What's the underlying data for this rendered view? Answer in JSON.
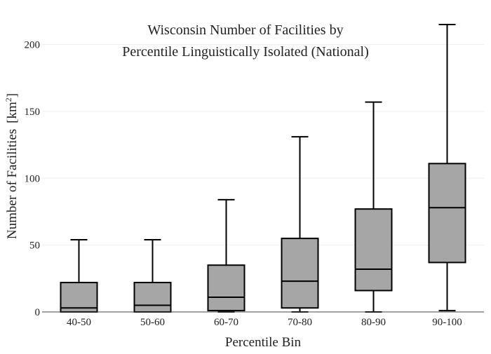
{
  "chart_data": {
    "type": "box",
    "title_lines": [
      "Wisconsin Number of Facilities by",
      "Percentile Linguistically Isolated (National)"
    ],
    "xlabel": "Percentile Bin",
    "ylabel": "Number of Facilities",
    "ylabel_unit_base": "[km",
    "ylabel_unit_sup": "2",
    "ylabel_unit_close": "]",
    "ylim": [
      0,
      215
    ],
    "yticks": [
      0,
      50,
      100,
      150,
      200
    ],
    "grid": true,
    "categories": [
      "40-50",
      "50-60",
      "60-70",
      "70-80",
      "80-90",
      "90-100"
    ],
    "boxes": [
      {
        "category": "40-50",
        "min": 0,
        "q1": 0,
        "median": 3,
        "q3": 22,
        "max": 54
      },
      {
        "category": "50-60",
        "min": 0,
        "q1": 0,
        "median": 5,
        "q3": 22,
        "max": 54
      },
      {
        "category": "60-70",
        "min": 0,
        "q1": 1,
        "median": 11,
        "q3": 35,
        "max": 84
      },
      {
        "category": "70-80",
        "min": 0,
        "q1": 3,
        "median": 23,
        "q3": 55,
        "max": 131
      },
      {
        "category": "80-90",
        "min": 0,
        "q1": 16,
        "median": 32,
        "q3": 77,
        "max": 157
      },
      {
        "category": "90-100",
        "min": 1,
        "q1": 37,
        "median": 78,
        "q3": 111,
        "max": 215
      }
    ],
    "box_fill": "#a6a6a6",
    "line_color": "#000000",
    "grid_color": "#eeeeee"
  }
}
